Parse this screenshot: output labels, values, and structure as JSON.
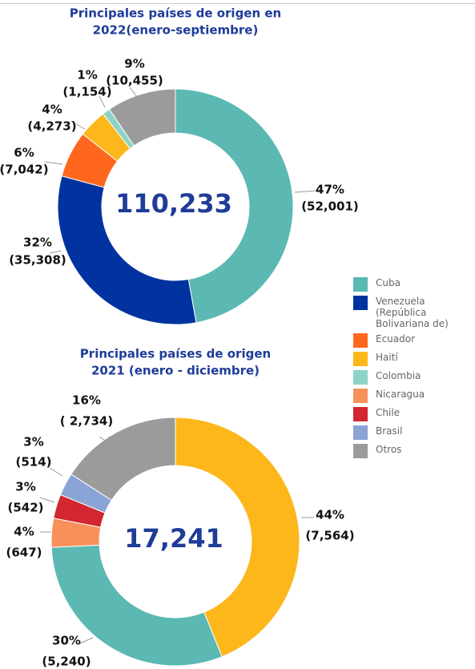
{
  "chart_data": [
    {
      "type": "donut",
      "title": [
        "Principales países de origen en",
        "2022(enero-septiembre)"
      ],
      "center_label": "110,233",
      "categories": [
        "Cuba",
        "Venezuela (República Bolivariana de)",
        "Ecuador",
        "Haití",
        "Colombia",
        "Otros"
      ],
      "colors": [
        "#5cb8b2",
        "#0033a0",
        "#ff671f",
        "#fdb71a",
        "#8dd3c7",
        "#9b9b9b"
      ],
      "values": [
        52001,
        35308,
        7042,
        4273,
        1154,
        10455
      ],
      "value_labels": [
        "(52,001)",
        "(35,308)",
        "(7,042)",
        "(4,273)",
        "(1,154)",
        "(10,455)"
      ],
      "percent_labels": [
        "47%",
        "32%",
        "6%",
        "4%",
        "1%",
        "9%"
      ]
    },
    {
      "type": "donut",
      "title": [
        "Principales países de origen",
        "2021 (enero - diciembre)"
      ],
      "center_label": "17,241",
      "categories": [
        "Haití",
        "Cuba",
        "Nicaragua",
        "Chile",
        "Brasil",
        "Otros"
      ],
      "colors": [
        "#fdb71a",
        "#5cb8b2",
        "#f7905a",
        "#d22630",
        "#8aa4d6",
        "#9b9b9b"
      ],
      "values": [
        7564,
        5240,
        647,
        542,
        514,
        2734
      ],
      "value_labels": [
        "(7,564)",
        "(5,240)",
        "(647)",
        "(542)",
        "(514)",
        "( 2,734)"
      ],
      "percent_labels": [
        "44%",
        "30%",
        "4%",
        "3%",
        "3%",
        "16%"
      ]
    }
  ],
  "legend": [
    {
      "name": "Cuba",
      "color": "#5cb8b2"
    },
    {
      "name": "Venezuela (República Bolivariana de)",
      "color": "#0033a0"
    },
    {
      "name": "Ecuador",
      "color": "#ff671f"
    },
    {
      "name": "Haití",
      "color": "#fdb71a"
    },
    {
      "name": "Colombia",
      "color": "#8dd3c7"
    },
    {
      "name": "Nicaragua",
      "color": "#f7905a"
    },
    {
      "name": "Chile",
      "color": "#d22630"
    },
    {
      "name": "Brasil",
      "color": "#8aa4d6"
    },
    {
      "name": "Otros",
      "color": "#9b9b9b"
    }
  ]
}
